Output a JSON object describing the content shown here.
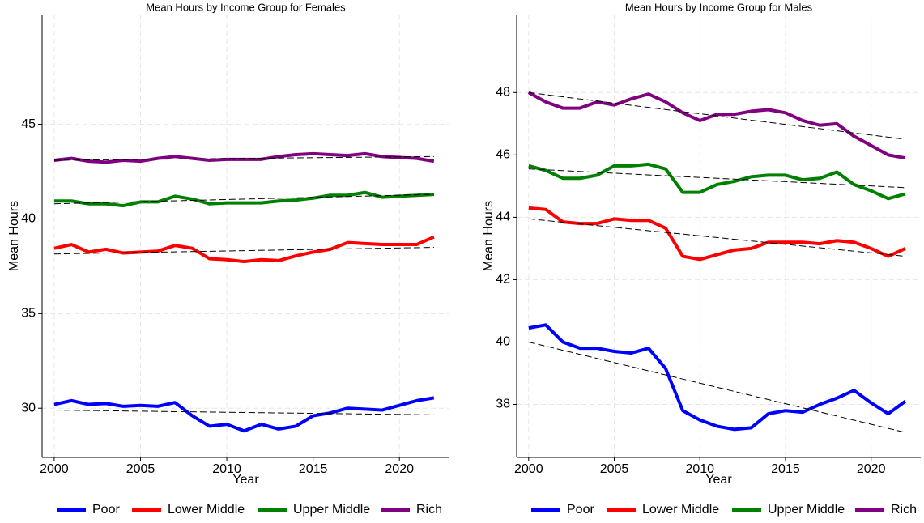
{
  "chart_data": [
    {
      "type": "line",
      "title": "Mean Hours by Income Group for Females",
      "xlabel": "Year",
      "ylabel": "Mean Hours",
      "x": [
        2000,
        2001,
        2002,
        2003,
        2004,
        2005,
        2006,
        2007,
        2008,
        2009,
        2010,
        2011,
        2012,
        2013,
        2014,
        2015,
        2016,
        2017,
        2018,
        2019,
        2020,
        2021,
        2022
      ],
      "xlim": [
        1999.3,
        2022.9
      ],
      "xticks": [
        2000,
        2005,
        2010,
        2015,
        2020
      ],
      "ylim": [
        27.4,
        50.8
      ],
      "yticks": [
        30,
        35,
        40,
        45
      ],
      "grid": true,
      "series": [
        {
          "name": "Poor",
          "color": "#0000ff",
          "values": [
            30.2,
            30.4,
            30.2,
            30.25,
            30.1,
            30.15,
            30.1,
            30.3,
            29.6,
            29.05,
            29.15,
            28.8,
            29.15,
            28.9,
            29.05,
            29.6,
            29.75,
            30.0,
            29.95,
            29.9,
            30.15,
            30.4,
            30.55
          ],
          "trend": [
            29.9,
            29.65
          ]
        },
        {
          "name": "Lower Middle",
          "color": "#ff0000",
          "values": [
            38.45,
            38.65,
            38.25,
            38.4,
            38.2,
            38.25,
            38.3,
            38.6,
            38.45,
            37.9,
            37.85,
            37.75,
            37.85,
            37.8,
            38.05,
            38.25,
            38.4,
            38.75,
            38.7,
            38.65,
            38.65,
            38.65,
            39.05
          ],
          "trend": [
            38.15,
            38.5
          ]
        },
        {
          "name": "Upper Middle",
          "color": "#008000",
          "values": [
            40.95,
            40.95,
            40.8,
            40.8,
            40.7,
            40.9,
            40.9,
            41.2,
            41.05,
            40.8,
            40.85,
            40.85,
            40.85,
            40.95,
            41.0,
            41.1,
            41.25,
            41.25,
            41.4,
            41.15,
            41.2,
            41.25,
            41.3
          ],
          "trend": [
            40.8,
            41.3
          ]
        },
        {
          "name": "Rich",
          "color": "#800080",
          "values": [
            43.1,
            43.2,
            43.05,
            43.0,
            43.1,
            43.05,
            43.2,
            43.3,
            43.2,
            43.1,
            43.15,
            43.15,
            43.15,
            43.3,
            43.4,
            43.45,
            43.4,
            43.35,
            43.45,
            43.3,
            43.25,
            43.2,
            43.05
          ],
          "trend": [
            43.1,
            43.3
          ]
        }
      ]
    },
    {
      "type": "line",
      "title": "Mean Hours by Income Group for Males",
      "xlabel": "Year",
      "ylabel": "Mean Hours",
      "x": [
        2000,
        2001,
        2002,
        2003,
        2004,
        2005,
        2006,
        2007,
        2008,
        2009,
        2010,
        2011,
        2012,
        2013,
        2014,
        2015,
        2016,
        2017,
        2018,
        2019,
        2020,
        2021,
        2022
      ],
      "xlim": [
        1999.3,
        2022.9
      ],
      "xticks": [
        2000,
        2005,
        2010,
        2015,
        2020
      ],
      "ylim": [
        36.3,
        50.5
      ],
      "yticks": [
        38,
        40,
        42,
        44,
        46,
        48
      ],
      "grid": true,
      "series": [
        {
          "name": "Poor",
          "color": "#0000ff",
          "values": [
            40.45,
            40.55,
            40.0,
            39.8,
            39.8,
            39.7,
            39.65,
            39.8,
            39.15,
            37.8,
            37.5,
            37.3,
            37.2,
            37.25,
            37.7,
            37.8,
            37.75,
            38.0,
            38.2,
            38.45,
            38.05,
            37.7,
            38.1
          ],
          "trend": [
            40.0,
            37.1
          ]
        },
        {
          "name": "Lower Middle",
          "color": "#ff0000",
          "values": [
            44.3,
            44.25,
            43.85,
            43.8,
            43.8,
            43.95,
            43.9,
            43.9,
            43.65,
            42.75,
            42.65,
            42.8,
            42.95,
            43.0,
            43.2,
            43.2,
            43.2,
            43.15,
            43.25,
            43.2,
            43.0,
            42.75,
            43.0
          ],
          "trend": [
            43.95,
            42.75
          ]
        },
        {
          "name": "Upper Middle",
          "color": "#008000",
          "values": [
            45.65,
            45.5,
            45.25,
            45.25,
            45.35,
            45.65,
            45.65,
            45.7,
            45.55,
            44.8,
            44.8,
            45.05,
            45.15,
            45.3,
            45.35,
            45.35,
            45.2,
            45.25,
            45.45,
            45.05,
            44.85,
            44.6,
            44.75
          ],
          "trend": [
            45.55,
            44.95
          ]
        },
        {
          "name": "Rich",
          "color": "#800080",
          "values": [
            48.0,
            47.7,
            47.5,
            47.5,
            47.7,
            47.6,
            47.8,
            47.95,
            47.7,
            47.35,
            47.1,
            47.3,
            47.3,
            47.4,
            47.45,
            47.35,
            47.1,
            46.95,
            47.0,
            46.6,
            46.3,
            46.0,
            45.9
          ],
          "trend": [
            48.0,
            46.5
          ]
        }
      ]
    }
  ]
}
